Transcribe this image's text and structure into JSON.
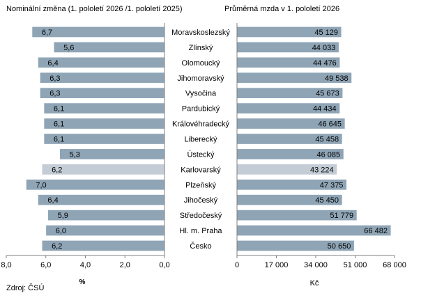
{
  "chart_data": [
    {
      "type": "bar",
      "orientation": "horizontal",
      "title": "Nominální změna (1. pololetí  2026 /1. pololetí 2025)",
      "xlabel": "%",
      "axis_reversed": true,
      "xlim": [
        0,
        8
      ],
      "ticks": [
        "8,0",
        "6,0",
        "4,0",
        "2,0",
        "0,0"
      ],
      "categories": [
        "Moravskoslezský",
        "Zlínský",
        "Olomoucký",
        "Jihomoravský",
        "Vysočina",
        "Pardubický",
        "Královéhradecký",
        "Liberecký",
        "Ústecký",
        "Karlovarský",
        "Plzeňský",
        "Jihočeský",
        "Středočeský",
        "Hl. m. Praha",
        "Česko"
      ],
      "values": [
        6.7,
        5.6,
        6.4,
        6.3,
        6.3,
        6.1,
        6.1,
        6.1,
        5.3,
        6.2,
        7.0,
        6.4,
        5.9,
        6.0,
        6.2
      ],
      "labels": [
        "6,7",
        "5,6",
        "6,4",
        "6,3",
        "6,3",
        "6,1",
        "6,1",
        "6,1",
        "5,3",
        "6,2",
        "7,0",
        "6,4",
        "5,9",
        "6,0",
        "6,2"
      ],
      "highlight_index": 9
    },
    {
      "type": "bar",
      "orientation": "horizontal",
      "title": "Průměrná mzda v 1.  pololetí 2026",
      "xlabel": "Kč",
      "xlim": [
        0,
        68000
      ],
      "ticks": [
        "0",
        "17 000",
        "34 000",
        "51 000",
        "68 000"
      ],
      "categories": [
        "Moravskoslezský",
        "Zlínský",
        "Olomoucký",
        "Jihomoravský",
        "Vysočina",
        "Pardubický",
        "Královéhradecký",
        "Liberecký",
        "Ústecký",
        "Karlovarský",
        "Plzeňský",
        "Jihočeský",
        "Středočeský",
        "Hl. m. Praha",
        "Česko"
      ],
      "values": [
        45129,
        44033,
        44476,
        49538,
        45673,
        44434,
        46645,
        45458,
        46085,
        43224,
        47375,
        45450,
        51779,
        66482,
        50650
      ],
      "labels": [
        "45 129",
        "44 033",
        "44 476",
        "49 538",
        "45 673",
        "44 434",
        "46 645",
        "45 458",
        "46 085",
        "43 224",
        "47 375",
        "45 450",
        "51 779",
        "66 482",
        "50 650"
      ],
      "highlight_index": 9
    }
  ],
  "source": "Zdroj: ČSÚ",
  "colors": {
    "bar": "#8fa5b6",
    "highlight": "#c4ccd6",
    "axis": "#808080",
    "bar_edge": "#ffffff"
  }
}
